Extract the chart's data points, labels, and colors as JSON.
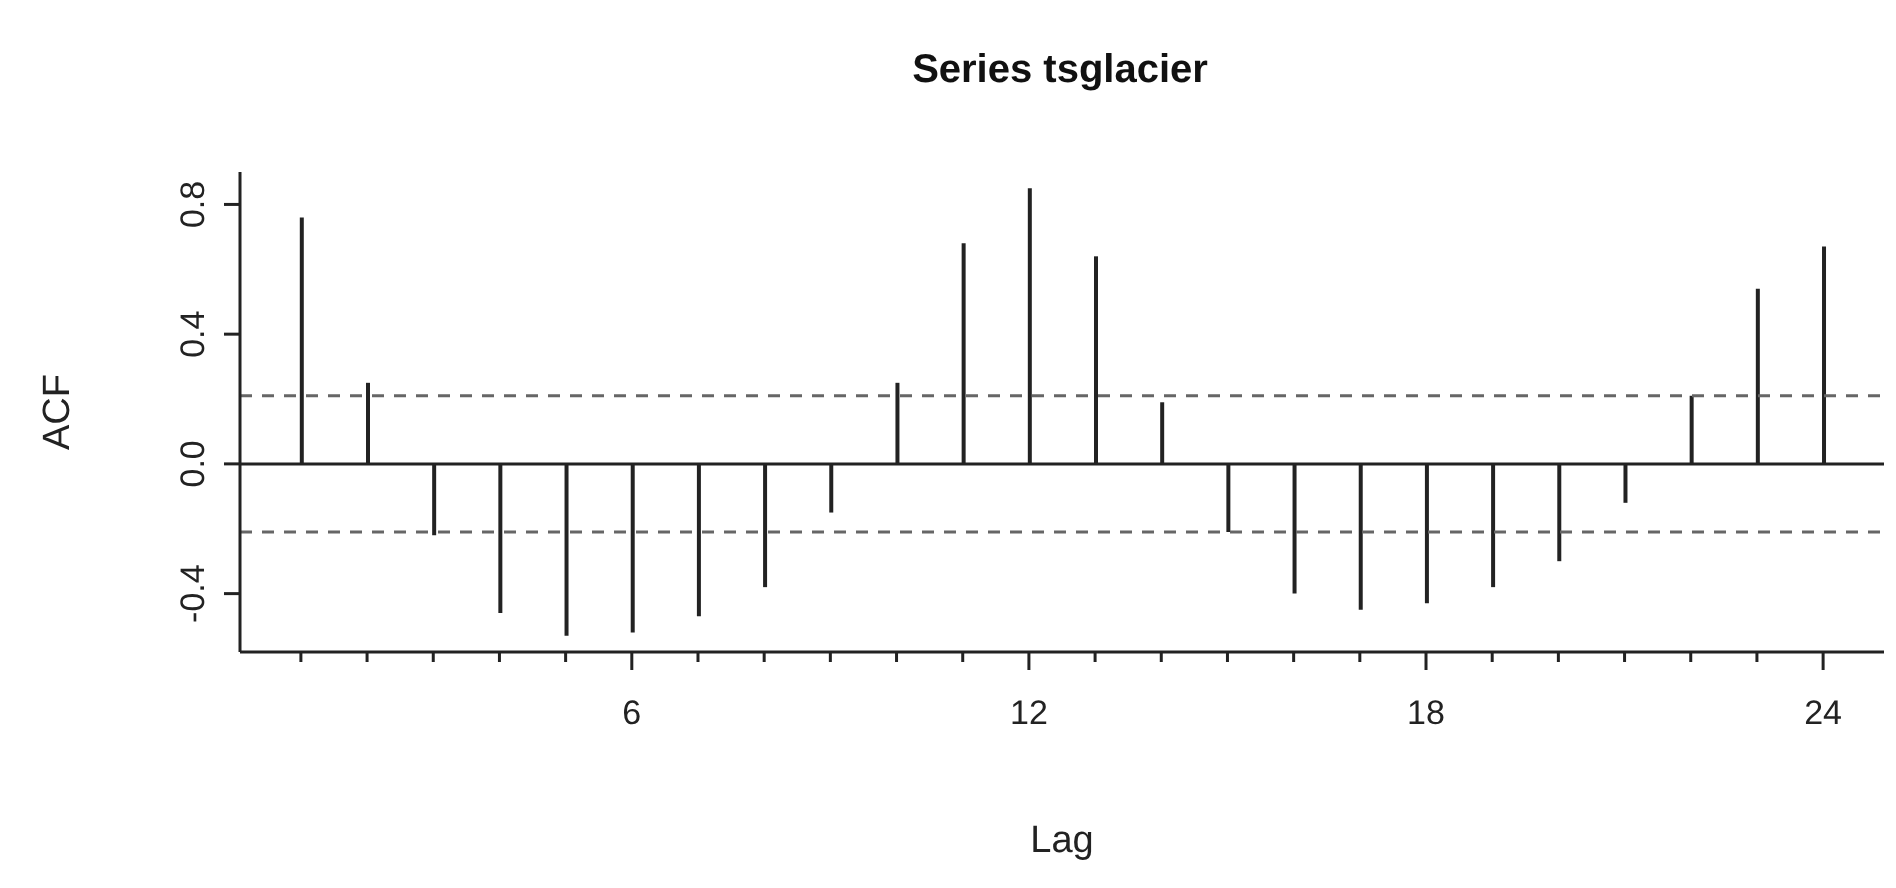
{
  "chart_data": {
    "type": "bar",
    "title": "Series  tsglacier",
    "xlabel": "Lag",
    "ylabel": "ACF",
    "x": [
      1,
      2,
      3,
      4,
      5,
      6,
      7,
      8,
      9,
      10,
      11,
      12,
      13,
      14,
      15,
      16,
      17,
      18,
      19,
      20,
      21,
      22,
      23,
      24
    ],
    "values": [
      0.76,
      0.25,
      -0.22,
      -0.46,
      -0.53,
      -0.52,
      -0.47,
      -0.38,
      -0.15,
      0.25,
      0.68,
      0.85,
      0.64,
      0.19,
      -0.21,
      -0.4,
      -0.45,
      -0.43,
      -0.38,
      -0.3,
      -0.12,
      0.21,
      0.54,
      0.67
    ],
    "color": "#222222",
    "xlim": [
      0.08,
      24.92
    ],
    "xticks": [
      {
        "value": 1,
        "label": null
      },
      {
        "value": 2,
        "label": null
      },
      {
        "value": 3,
        "label": null
      },
      {
        "value": 4,
        "label": null
      },
      {
        "value": 5,
        "label": null
      },
      6,
      {
        "value": 7,
        "label": null
      },
      {
        "value": 8,
        "label": null
      },
      {
        "value": 9,
        "label": null
      },
      {
        "value": 10,
        "label": null
      },
      {
        "value": 11,
        "label": null
      },
      12,
      {
        "value": 13,
        "label": null
      },
      {
        "value": 14,
        "label": null
      },
      {
        "value": 15,
        "label": null
      },
      {
        "value": 16,
        "label": null
      },
      {
        "value": 17,
        "label": null
      },
      18,
      {
        "value": 19,
        "label": null
      },
      {
        "value": 20,
        "label": null
      },
      {
        "value": 21,
        "label": null
      },
      {
        "value": 22,
        "label": null
      },
      {
        "value": 23,
        "label": null
      },
      24
    ],
    "ylim": [
      -0.58,
      0.9
    ],
    "yticks": [
      {
        "value": -0.4,
        "label": "-0.4"
      },
      {
        "value": 0,
        "label": "0.0"
      },
      {
        "value": 0.4,
        "label": "0.4"
      },
      {
        "value": 0.8,
        "label": "0.8"
      }
    ],
    "ref_lines": [
      {
        "axis": "y",
        "value": 0,
        "color": "#222222",
        "line_style": "solid"
      },
      {
        "axis": "y",
        "value": 0.21,
        "color": "#666666",
        "line_style": "dashed"
      },
      {
        "axis": "y",
        "value": -0.21,
        "color": "#666666",
        "line_style": "dashed"
      }
    ],
    "grid": false,
    "legend": false
  }
}
